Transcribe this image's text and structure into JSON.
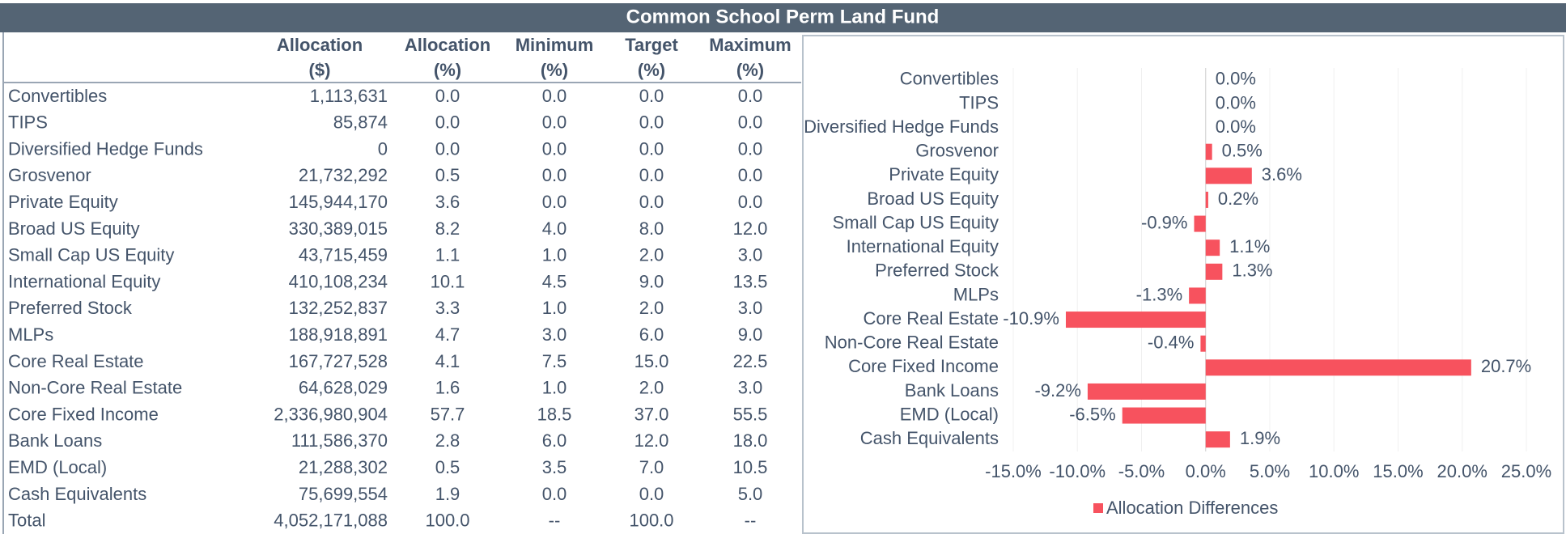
{
  "title": "Common School Perm Land Fund",
  "table": {
    "columns": [
      [
        "Allocation",
        "($)"
      ],
      [
        "Allocation",
        "(%)"
      ],
      [
        "Minimum",
        "(%)"
      ],
      [
        "Target",
        "(%)"
      ],
      [
        "Maximum",
        "(%)"
      ]
    ],
    "rows": [
      [
        "Convertibles",
        "1,113,631",
        "0.0",
        "0.0",
        "0.0",
        "0.0"
      ],
      [
        "TIPS",
        "85,874",
        "0.0",
        "0.0",
        "0.0",
        "0.0"
      ],
      [
        "Diversified Hedge Funds",
        "0",
        "0.0",
        "0.0",
        "0.0",
        "0.0"
      ],
      [
        "Grosvenor",
        "21,732,292",
        "0.5",
        "0.0",
        "0.0",
        "0.0"
      ],
      [
        "Private Equity",
        "145,944,170",
        "3.6",
        "0.0",
        "0.0",
        "0.0"
      ],
      [
        "Broad US Equity",
        "330,389,015",
        "8.2",
        "4.0",
        "8.0",
        "12.0"
      ],
      [
        "Small Cap US Equity",
        "43,715,459",
        "1.1",
        "1.0",
        "2.0",
        "3.0"
      ],
      [
        "International Equity",
        "410,108,234",
        "10.1",
        "4.5",
        "9.0",
        "13.5"
      ],
      [
        "Preferred Stock",
        "132,252,837",
        "3.3",
        "1.0",
        "2.0",
        "3.0"
      ],
      [
        "MLPs",
        "188,918,891",
        "4.7",
        "3.0",
        "6.0",
        "9.0"
      ],
      [
        "Core Real Estate",
        "167,727,528",
        "4.1",
        "7.5",
        "15.0",
        "22.5"
      ],
      [
        "Non-Core Real Estate",
        "64,628,029",
        "1.6",
        "1.0",
        "2.0",
        "3.0"
      ],
      [
        "Core Fixed Income",
        "2,336,980,904",
        "57.7",
        "18.5",
        "37.0",
        "55.5"
      ],
      [
        "Bank Loans",
        "111,586,370",
        "2.8",
        "6.0",
        "12.0",
        "18.0"
      ],
      [
        "EMD (Local)",
        "21,288,302",
        "0.5",
        "3.5",
        "7.0",
        "10.5"
      ],
      [
        "Cash Equivalents",
        "75,699,554",
        "1.9",
        "0.0",
        "0.0",
        "5.0"
      ],
      [
        "Total",
        "4,052,171,088",
        "100.0",
        "--",
        "100.0",
        "--"
      ]
    ]
  },
  "chart_data": {
    "type": "hbar",
    "categories": [
      "Convertibles",
      "TIPS",
      "Diversified Hedge Funds",
      "Grosvenor",
      "Private Equity",
      "Broad US Equity",
      "Small Cap US Equity",
      "International Equity",
      "Preferred Stock",
      "MLPs",
      "Core Real Estate",
      "Non-Core Real Estate",
      "Core Fixed Income",
      "Bank Loans",
      "EMD (Local)",
      "Cash Equivalents"
    ],
    "series": [
      {
        "name": "Allocation Differences",
        "color": "#f7525e",
        "values": [
          0.0,
          0.0,
          0.0,
          0.5,
          3.6,
          0.2,
          -0.9,
          1.1,
          1.3,
          -1.3,
          -10.9,
          -0.4,
          20.7,
          -9.2,
          -6.5,
          1.9
        ],
        "value_labels": [
          "0.0%",
          "0.0%",
          "0.0%",
          "0.5%",
          "3.6%",
          "0.2%",
          "-0.9%",
          "1.1%",
          "1.3%",
          "-1.3%",
          "-10.9%",
          "-0.4%",
          "20.7%",
          "-9.2%",
          "-6.5%",
          "1.9%"
        ]
      }
    ],
    "xlim": [
      -15,
      25
    ],
    "xticks": [
      {
        "value": -15,
        "label": "-15.0%"
      },
      {
        "value": -10,
        "label": "-10.0%"
      },
      {
        "value": -5,
        "label": "-5.0%"
      },
      {
        "value": 0,
        "label": "0.0%"
      },
      {
        "value": 5,
        "label": "5.0%"
      },
      {
        "value": 10,
        "label": "10.0%"
      },
      {
        "value": 15,
        "label": "15.0%"
      },
      {
        "value": 20,
        "label": "20.0%"
      },
      {
        "value": 25,
        "label": "25.0%"
      }
    ],
    "grid": true,
    "legend": "bottom"
  }
}
